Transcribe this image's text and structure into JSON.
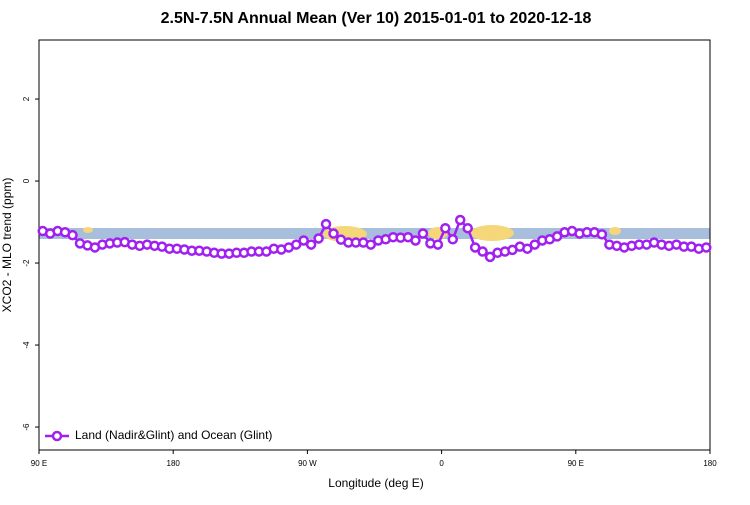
{
  "chart_data": {
    "type": "line",
    "title": "2.5N-7.5N Annual Mean (Ver 10)   2015-01-01 to 2020-12-18",
    "x_label": "Longitude (deg E)",
    "y_label": "XCO2 - MLO trend (ppm)",
    "x": [
      92.5,
      97.5,
      102.5,
      107.5,
      112.5,
      117.5,
      122.5,
      127.5,
      132.5,
      137.5,
      142.5,
      147.5,
      152.5,
      157.5,
      162.5,
      167.5,
      172.5,
      177.5,
      182.5,
      187.5,
      192.5,
      197.5,
      202.5,
      207.5,
      212.5,
      217.5,
      222.5,
      227.5,
      232.5,
      237.5,
      242.5,
      247.5,
      252.5,
      257.5,
      262.5,
      267.5,
      272.5,
      277.5,
      282.5,
      287.5,
      292.5,
      297.5,
      302.5,
      307.5,
      312.5,
      317.5,
      322.5,
      327.5,
      332.5,
      337.5,
      342.5,
      347.5,
      352.5,
      357.5,
      362.5,
      367.5,
      372.5,
      377.5,
      382.5,
      387.5,
      392.5,
      397.5,
      402.5,
      407.5,
      412.5,
      417.5,
      422.5,
      427.5,
      432.5,
      437.5,
      442.5,
      447.5,
      452.5,
      457.5,
      462.5,
      467.5,
      472.5,
      477.5,
      482.5,
      487.5,
      492.5,
      497.5,
      502.5,
      507.5,
      512.5,
      517.5,
      522.5,
      527.5,
      532.5,
      537.5
    ],
    "series": [
      {
        "name": "Land (Nadir&Glint) and Ocean (Glint)",
        "color": "#a020f0",
        "values": [
          -1.22,
          -1.28,
          -1.22,
          -1.25,
          -1.32,
          -1.52,
          -1.57,
          -1.62,
          -1.55,
          -1.52,
          -1.5,
          -1.49,
          -1.55,
          -1.58,
          -1.55,
          -1.58,
          -1.6,
          -1.65,
          -1.65,
          -1.67,
          -1.7,
          -1.7,
          -1.72,
          -1.75,
          -1.77,
          -1.77,
          -1.75,
          -1.75,
          -1.72,
          -1.72,
          -1.72,
          -1.65,
          -1.67,
          -1.62,
          -1.55,
          -1.45,
          -1.55,
          -1.4,
          -1.05,
          -1.28,
          -1.43,
          -1.5,
          -1.5,
          -1.5,
          -1.55,
          -1.45,
          -1.42,
          -1.37,
          -1.38,
          -1.37,
          -1.45,
          -1.28,
          -1.52,
          -1.55,
          -1.15,
          -1.42,
          -0.95,
          -1.15,
          -1.62,
          -1.72,
          -1.85,
          -1.75,
          -1.72,
          -1.68,
          -1.6,
          -1.65,
          -1.55,
          -1.45,
          -1.42,
          -1.35,
          -1.25,
          -1.22,
          -1.28,
          -1.25,
          -1.25,
          -1.3,
          -1.55,
          -1.58,
          -1.62,
          -1.58,
          -1.55,
          -1.55,
          -1.5,
          -1.55,
          -1.58,
          -1.55,
          -1.6,
          -1.6,
          -1.65,
          -1.62
        ]
      }
    ],
    "xlim": [
      90,
      540
    ],
    "xticks": [
      {
        "value": 90,
        "label": "90 E"
      },
      180,
      {
        "value": 270,
        "label": "90 W"
      },
      {
        "value": 360,
        "label": "0"
      },
      {
        "value": 450,
        "label": "90 E"
      },
      {
        "value": 540,
        "label": "180"
      }
    ],
    "ylim": [
      -6.56,
      3.44
    ],
    "yticks": [
      -6,
      -4,
      -2,
      0,
      2
    ],
    "legend": "bottom-left"
  }
}
